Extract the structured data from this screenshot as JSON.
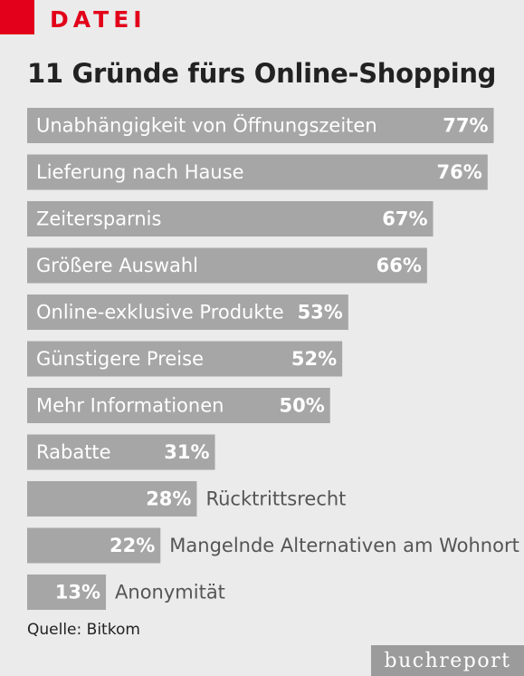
{
  "header": {
    "section_label": "DATEI",
    "accent_color": "#e2001a"
  },
  "chart_data": {
    "type": "bar",
    "orientation": "horizontal",
    "title": "11 Gründe fürs Online-Shopping",
    "unit": "%",
    "bar_color": "#a6a6a6",
    "categories": [
      "Unabhängigkeit von Öffnungszeiten",
      "Lieferung nach Hause",
      "Zeitersparnis",
      "Größere Auswahl",
      "Online-exklusive Produkte",
      "Günstigere Preise",
      "Mehr Informationen",
      "Rabatte",
      "Rücktrittsrecht",
      "Mangelnde Alternativen am Wohnort",
      "Anonymität"
    ],
    "values": [
      77,
      76,
      67,
      66,
      53,
      52,
      50,
      31,
      28,
      22,
      13
    ],
    "value_labels": [
      "77%",
      "76%",
      "67%",
      "66%",
      "53%",
      "52%",
      "50%",
      "31%",
      "28%",
      "22%",
      "13%"
    ]
  },
  "footer": {
    "source": "Quelle: Bitkom",
    "brand": "buchreport"
  }
}
